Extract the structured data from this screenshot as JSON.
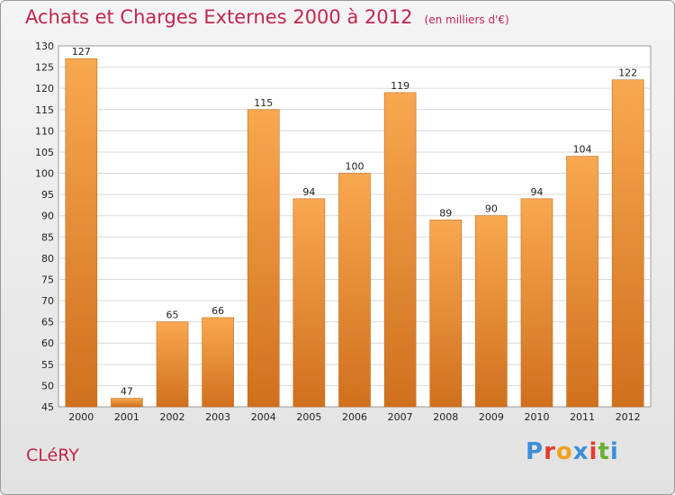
{
  "chart_data": {
    "type": "bar",
    "title": "Achats et Charges Externes 2000 à 2012",
    "subtitle": "(en milliers d'€)",
    "categories": [
      "2000",
      "2001",
      "2002",
      "2003",
      "2004",
      "2005",
      "2006",
      "2007",
      "2008",
      "2009",
      "2010",
      "2011",
      "2012"
    ],
    "values": [
      127,
      47,
      65,
      66,
      115,
      94,
      100,
      119,
      89,
      90,
      94,
      104,
      122
    ],
    "ylim": [
      45,
      130
    ],
    "yticks": [
      45,
      50,
      55,
      60,
      65,
      70,
      75,
      80,
      85,
      90,
      95,
      100,
      105,
      110,
      115,
      120,
      125,
      130
    ],
    "grid": true,
    "bar_color_light": "#f8a850",
    "bar_color_dark": "#d0701e"
  },
  "footer": {
    "commune": "CLéRY",
    "logo_letters": [
      "P",
      "r",
      "o",
      "x",
      "i",
      "t",
      "i"
    ],
    "logo_colors": [
      "#3c8ed8",
      "#e33b2f",
      "#f0a020",
      "#3c8ed8",
      "#e33b2f",
      "#68b030",
      "#3c8ed8"
    ]
  }
}
